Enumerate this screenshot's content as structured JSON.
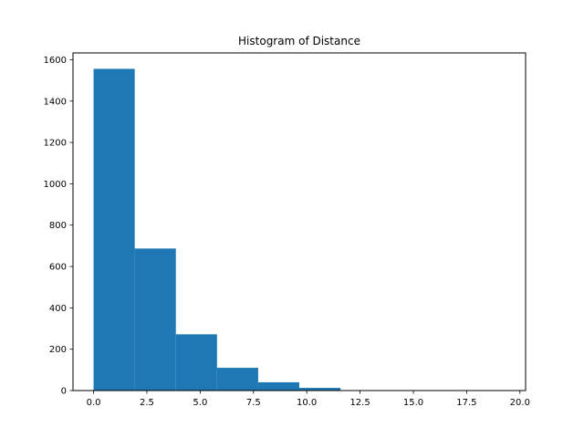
{
  "chart_data": {
    "type": "bar",
    "subtype": "histogram",
    "title": "Histogram of Distance",
    "xlabel": "",
    "ylabel": "",
    "bin_edges": [
      0.0,
      1.93,
      3.86,
      5.79,
      7.72,
      9.65,
      11.58,
      13.51,
      15.44,
      17.37,
      19.3
    ],
    "values": [
      1556,
      687,
      272,
      110,
      40,
      13,
      2,
      1,
      0,
      1
    ],
    "xlim": [
      -0.965,
      20.265
    ],
    "ylim": [
      0,
      1633
    ],
    "xticks": [
      0.0,
      2.5,
      5.0,
      7.5,
      10.0,
      12.5,
      15.0,
      17.5,
      20.0
    ],
    "xtick_labels": [
      "0.0",
      "2.5",
      "5.0",
      "7.5",
      "10.0",
      "12.5",
      "15.0",
      "17.5",
      "20.0"
    ],
    "yticks": [
      0,
      200,
      400,
      600,
      800,
      1000,
      1200,
      1400,
      1600
    ],
    "ytick_labels": [
      "0",
      "200",
      "400",
      "600",
      "800",
      "1000",
      "1200",
      "1400",
      "1600"
    ],
    "bar_color": "#1f77b4",
    "grid": false,
    "legend": null
  }
}
